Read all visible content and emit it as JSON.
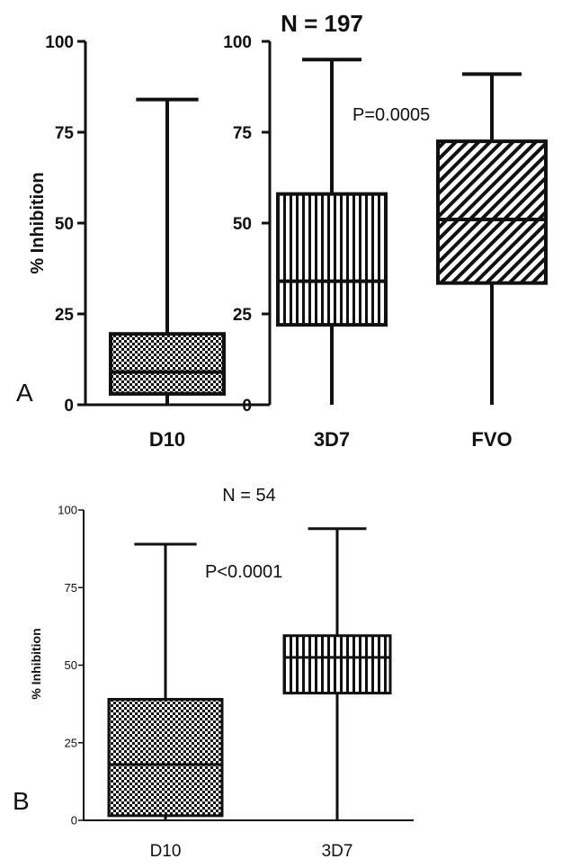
{
  "chart_data": [
    {
      "type": "box",
      "panel_label": "A",
      "title": "N = 197",
      "ylabel": "% Inhibition",
      "ylim": [
        0,
        100
      ],
      "yticks": [
        "0",
        "25",
        "50",
        "75",
        "100"
      ],
      "annotation": "P=0.0005",
      "categories": [
        "D10",
        "3D7",
        "FVO"
      ],
      "series": [
        {
          "category": "D10",
          "min": 0,
          "q1": 3,
          "median": 9,
          "q3": 19.5,
          "max": 84,
          "pattern": "checker"
        },
        {
          "category": "3D7",
          "min": 0,
          "q1": 22,
          "median": 34,
          "q3": 58,
          "max": 95,
          "pattern": "vertical-lines"
        },
        {
          "category": "FVO",
          "min": 0,
          "q1": 33.5,
          "median": 51,
          "q3": 72.5,
          "max": 91,
          "pattern": "diagonal-lines"
        }
      ]
    },
    {
      "type": "box",
      "panel_label": "B",
      "title": "N = 54",
      "ylabel": "% Inhibition",
      "ylim": [
        0,
        100
      ],
      "yticks": [
        "0",
        "25",
        "50",
        "75",
        "100"
      ],
      "annotation": "P<0.0001",
      "categories": [
        "D10",
        "3D7"
      ],
      "series": [
        {
          "category": "D10",
          "min": 0,
          "q1": 1.5,
          "median": 18,
          "q3": 39,
          "max": 89,
          "pattern": "checker"
        },
        {
          "category": "3D7",
          "min": 0,
          "q1": 41,
          "median": 52.5,
          "q3": 59.5,
          "max": 94,
          "pattern": "vertical-lines"
        }
      ]
    }
  ]
}
